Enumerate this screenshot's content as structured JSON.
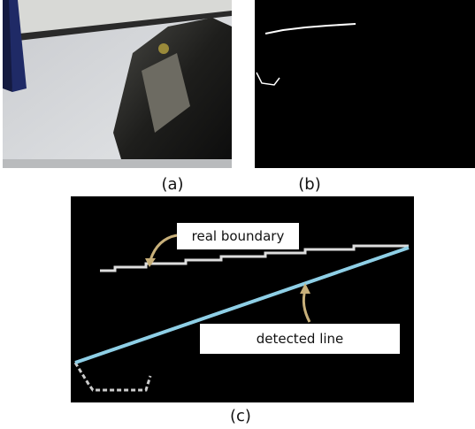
{
  "panels": [
    {
      "label": "(a)"
    },
    {
      "label": "(b)"
    },
    {
      "label": "(c)",
      "annotations": [
        "real boundary",
        "detected line"
      ]
    }
  ]
}
